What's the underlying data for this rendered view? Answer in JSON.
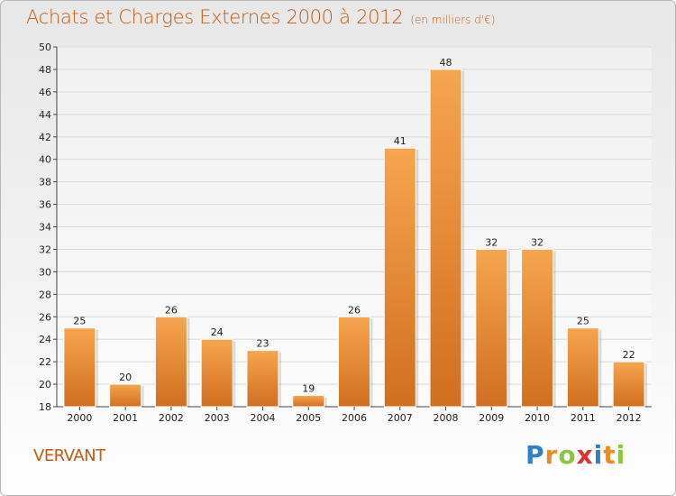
{
  "title": "Achats et Charges Externes 2000 à 2012",
  "subtitle": "(en milliers d'€)",
  "commune": "VERVANT",
  "logo": {
    "letters": [
      "P",
      "r",
      "o",
      "x",
      "i",
      "t",
      "i"
    ],
    "colors": [
      "#2e7fc6",
      "#f08a1c",
      "#8cc63f",
      "#e2312d",
      "#2e7fc6",
      "#f08a1c",
      "#8cc63f"
    ]
  },
  "colors": {
    "accent": "#c55a11",
    "bar_top": "#f6a54f",
    "bar_bottom": "#d06f1f",
    "grid": "#d9d9d9"
  },
  "chart_data": {
    "type": "bar",
    "title": "Achats et Charges Externes 2000 à 2012",
    "subtitle": "(en milliers d'€)",
    "xlabel": "",
    "ylabel": "",
    "categories": [
      "2000",
      "2001",
      "2002",
      "2003",
      "2004",
      "2005",
      "2006",
      "2007",
      "2008",
      "2009",
      "2010",
      "2011",
      "2012"
    ],
    "values": [
      25,
      20,
      26,
      24,
      23,
      19,
      26,
      41,
      48,
      32,
      32,
      25,
      22
    ],
    "ylim": [
      18,
      50
    ],
    "yticks": [
      18,
      20,
      22,
      24,
      26,
      28,
      30,
      32,
      34,
      36,
      38,
      40,
      42,
      44,
      46,
      48,
      50
    ],
    "grid": true,
    "legend": "none"
  }
}
